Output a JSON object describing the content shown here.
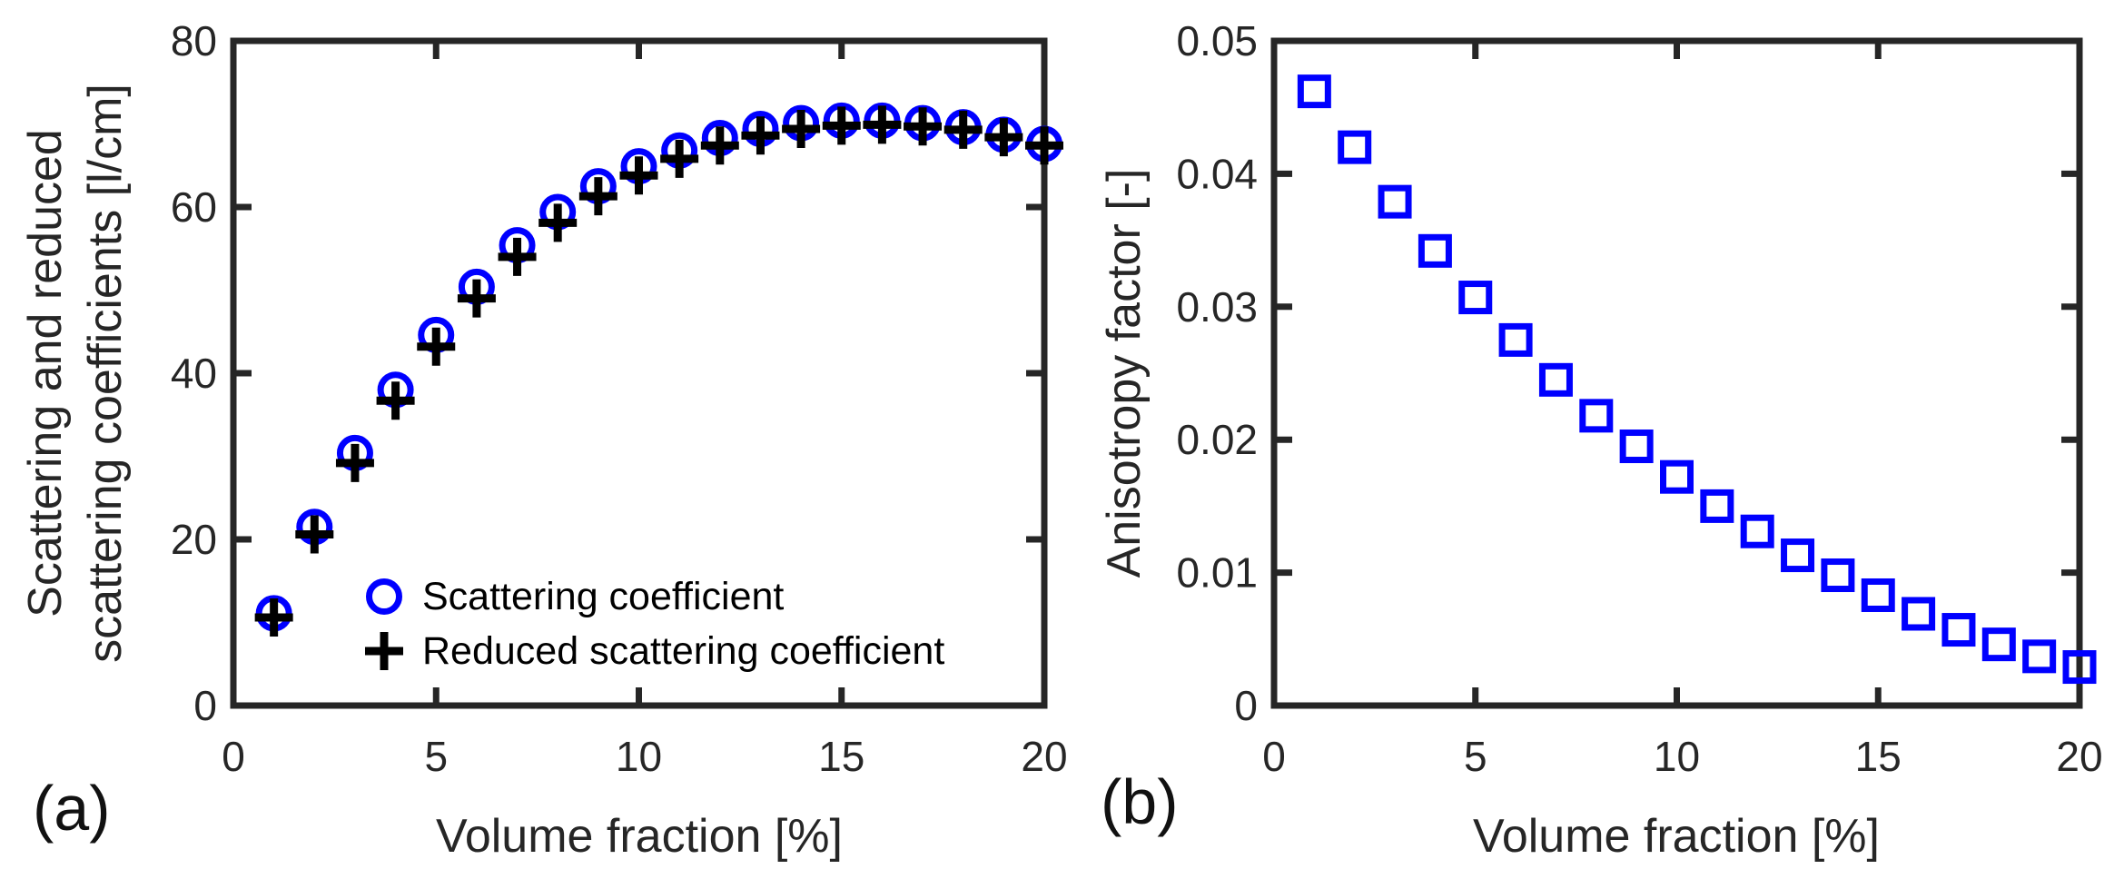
{
  "figure": {
    "background": "#ffffff",
    "axis_color": "#262626",
    "text_color": "#262626",
    "marker_blue": "#0000ff",
    "marker_black": "#000000"
  },
  "chart_data": [
    {
      "type": "scatter",
      "panel_label": "(a)",
      "xlabel": "Volume fraction [%]",
      "ylabel_lines": [
        "Scattering and reduced",
        "scattering coefficients [l/cm]"
      ],
      "xlim": [
        0,
        20
      ],
      "ylim": [
        0,
        80
      ],
      "xticks": [
        0,
        5,
        10,
        15,
        20
      ],
      "xtick_labels": [
        "0",
        "5",
        "10",
        "15",
        "20"
      ],
      "yticks": [
        0,
        20,
        40,
        60,
        80
      ],
      "ytick_labels": [
        "0",
        "20",
        "40",
        "60",
        "80"
      ],
      "grid": false,
      "legend_position": "inside lower right, no box",
      "x": [
        1,
        2,
        3,
        4,
        5,
        6,
        7,
        8,
        9,
        10,
        11,
        12,
        13,
        14,
        15,
        16,
        17,
        18,
        19,
        20
      ],
      "series": [
        {
          "name": "Scattering coefficient",
          "marker": "circle",
          "color": "#0000ff",
          "values": [
            11.1,
            21.5,
            30.4,
            38.0,
            44.6,
            50.4,
            55.4,
            59.4,
            62.5,
            64.9,
            66.8,
            68.3,
            69.4,
            70.1,
            70.4,
            70.4,
            70.1,
            69.6,
            68.7,
            67.6
          ]
        },
        {
          "name": "Reduced scattering coefficient",
          "marker": "plus",
          "color": "#000000",
          "values": [
            10.6,
            20.6,
            29.2,
            36.7,
            43.2,
            49.0,
            54.0,
            58.1,
            61.3,
            63.8,
            65.8,
            67.4,
            68.6,
            69.4,
            69.8,
            69.9,
            69.7,
            69.3,
            68.4,
            67.4
          ]
        }
      ]
    },
    {
      "type": "scatter",
      "panel_label": "(b)",
      "xlabel": "Volume fraction [%]",
      "ylabel_lines": [
        "Anisotropy factor [-]"
      ],
      "xlim": [
        0,
        20
      ],
      "ylim": [
        0,
        0.05
      ],
      "xticks": [
        0,
        5,
        10,
        15,
        20
      ],
      "xtick_labels": [
        "0",
        "5",
        "10",
        "15",
        "20"
      ],
      "yticks": [
        0,
        0.01,
        0.02,
        0.03,
        0.04,
        0.05
      ],
      "ytick_labels": [
        "0",
        "0.01",
        "0.02",
        "0.03",
        "0.04",
        "0.05"
      ],
      "grid": false,
      "x": [
        1,
        2,
        3,
        4,
        5,
        6,
        7,
        8,
        9,
        10,
        11,
        12,
        13,
        14,
        15,
        16,
        17,
        18,
        19,
        20
      ],
      "series": [
        {
          "name": "Anisotropy factor",
          "marker": "square",
          "color": "#0000ff",
          "values": [
            0.0462,
            0.042,
            0.0379,
            0.0342,
            0.0307,
            0.0275,
            0.0245,
            0.0218,
            0.0195,
            0.0172,
            0.015,
            0.0131,
            0.0113,
            0.0098,
            0.0083,
            0.0069,
            0.0057,
            0.0046,
            0.0037,
            0.0029
          ]
        }
      ]
    }
  ]
}
